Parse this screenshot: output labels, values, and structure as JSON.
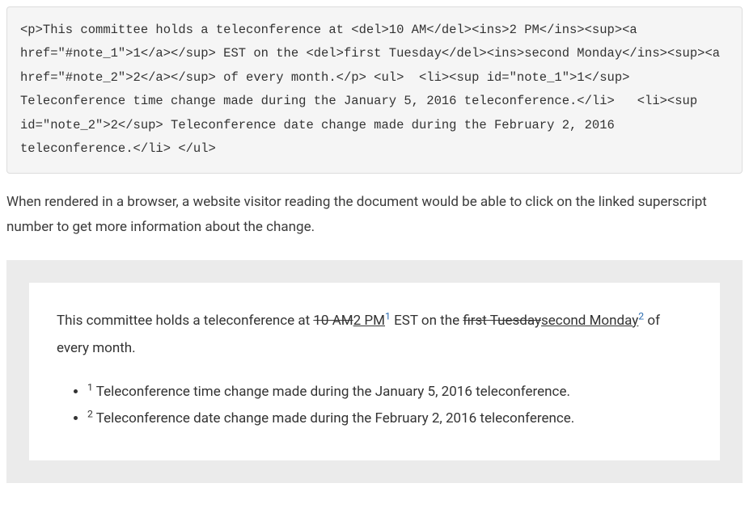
{
  "code_block": "<p>This committee holds a teleconference at <del>10 AM</del><ins>2 PM</ins><sup><a href=\"#note_1\">1</a></sup> EST on the <del>first Tuesday</del><ins>second Monday</ins><sup><a href=\"#note_2\">2</a></sup> of every month.</p> <ul>  <li><sup id=\"note_1\">1</sup> Teleconference time change made during the January 5, 2016 teleconference.</li>   <li><sup id=\"note_2\">2</sup> Teleconference date change made during the February 2, 2016 teleconference.</li> </ul>",
  "body_text": "When rendered in a browser, a website visitor reading the document would be able to click on the linked superscript number to get more information about the change.",
  "rendered": {
    "para_prefix": "This committee holds a teleconference at ",
    "del_time": "10 AM",
    "ins_time": "2 PM",
    "sup1": "1",
    "mid1": " EST on the ",
    "del_day": "first Tuesday",
    "ins_day": "second Monday",
    "sup2": "2",
    "suffix": " of every month.",
    "note1_sup": "1",
    "note1_text": " Teleconference time change made during the January 5, 2016 teleconference.",
    "note2_sup": "2",
    "note2_text": " Teleconference date change made during the February 2, 2016 teleconference.",
    "link_color": "#2b6cb0"
  },
  "colors": {
    "code_bg": "#f5f5f5",
    "code_border": "#dddddd",
    "wrapper_bg": "#ebebeb",
    "box_bg": "#ffffff",
    "text": "#333333"
  }
}
